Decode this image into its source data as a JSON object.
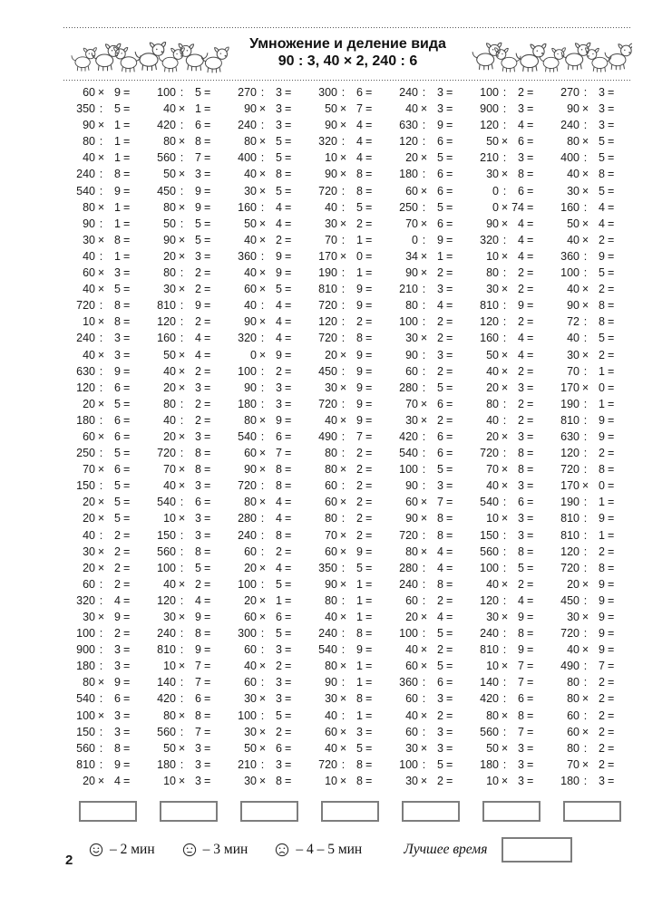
{
  "header": {
    "title_line1": "Умножение и деление вида",
    "title_line2": "90 : 3, 40 × 2, 240 : 6"
  },
  "problems": {
    "equals_sign": "=",
    "columns": [
      [
        "60×9",
        "350:5",
        "90×1",
        "80:1",
        "40×1",
        "240:8",
        "540:9",
        "80×1",
        "90:1",
        "30×8",
        "40:1",
        "60×3",
        "40×5",
        "720:8",
        "10×8",
        "240:3",
        "40×3",
        "630:9",
        "120:6",
        "20×5",
        "180:6",
        "60×6",
        "250:5",
        "70×6",
        "150:5",
        "20×5",
        "20×5",
        "40:2",
        "30×2",
        "20×2",
        "60:2",
        "320:4",
        "30×9",
        "100:2",
        "900:3",
        "180:3",
        "80×9",
        "540:6",
        "100×3",
        "150:3",
        "560:8",
        "810:9",
        "20×4"
      ],
      [
        "100:5",
        "40×1",
        "420:6",
        "80×8",
        "560:7",
        "50×3",
        "450:9",
        "80×9",
        "50:5",
        "90×5",
        "20×3",
        "80:2",
        "30×2",
        "810:9",
        "120:2",
        "160:4",
        "50×4",
        "40×2",
        "20×3",
        "80:2",
        "40:2",
        "20×3",
        "720:8",
        "70×8",
        "40×3",
        "540:6",
        "10×3",
        "150:3",
        "560:8",
        "100:5",
        "40×2",
        "120:4",
        "30×9",
        "240:8",
        "810:9",
        "10×7",
        "140:7",
        "420:6",
        "80×8",
        "560:7",
        "50×3",
        "180:3",
        "10×3"
      ],
      [
        "270:3",
        "90×3",
        "240:3",
        "80×5",
        "400:5",
        "40×8",
        "30×5",
        "160:4",
        "50×4",
        "40×2",
        "360:9",
        "40×9",
        "60×5",
        "40:4",
        "90×4",
        "320:4",
        "0×9",
        "100:2",
        "90:3",
        "180:3",
        "80×9",
        "540:6",
        "60×7",
        "90×8",
        "720:8",
        "80×4",
        "280:4",
        "240:8",
        "60:2",
        "20×4",
        "100:5",
        "20×1",
        "60×6",
        "300:5",
        "60:3",
        "40×2",
        "60:3",
        "30×3",
        "100:5",
        "30×2",
        "50×6",
        "210:3",
        "30×8"
      ],
      [
        "300:6",
        "50×7",
        "90×4",
        "320:4",
        "10×4",
        "90×8",
        "720:8",
        "40:5",
        "30×2",
        "70:1",
        "170×0",
        "190:1",
        "810:9",
        "720:9",
        "120:2",
        "720:8",
        "20×9",
        "450:9",
        "30×9",
        "720:9",
        "40×9",
        "490:7",
        "80:2",
        "80×2",
        "60:2",
        "60×2",
        "80:2",
        "70×2",
        "60×9",
        "350:5",
        "90×1",
        "80:1",
        "40×1",
        "240:8",
        "540:9",
        "80×1",
        "90:1",
        "30×8",
        "40:1",
        "60×3",
        "40×5",
        "720:8",
        "10×8"
      ],
      [
        "240:3",
        "40×3",
        "630:9",
        "120:6",
        "20×5",
        "180:6",
        "60×6",
        "250:5",
        "70×6",
        "0:9",
        "34×1",
        "90×2",
        "210:3",
        "80:4",
        "100:2",
        "30×2",
        "90:3",
        "60:2",
        "280:5",
        "70×6",
        "30×2",
        "420:6",
        "540:6",
        "100:5",
        "90:3",
        "60×7",
        "90×8",
        "720:8",
        "80×4",
        "280:4",
        "240:8",
        "60:2",
        "20×4",
        "100:5",
        "40×2",
        "60×5",
        "360:6",
        "60:3",
        "40×2",
        "60:3",
        "30×3",
        "100:5",
        "30×2"
      ],
      [
        "100:2",
        "900:3",
        "120:4",
        "50×6",
        "210:3",
        "30×8",
        "0:6",
        "0×74",
        "90×4",
        "320:4",
        "10×4",
        "80:2",
        "30×2",
        "810:9",
        "120:2",
        "160:4",
        "50×4",
        "40×2",
        "20×3",
        "80:2",
        "40:2",
        "20×3",
        "720:8",
        "70×8",
        "40×3",
        "540:6",
        "10×3",
        "150:3",
        "560:8",
        "100:5",
        "40×2",
        "120:4",
        "30×9",
        "240:8",
        "810:9",
        "10×7",
        "140:7",
        "420:6",
        "80×8",
        "560:7",
        "50×3",
        "180:3",
        "10×3"
      ],
      [
        "270:3",
        "90×3",
        "240:3",
        "80×5",
        "400:5",
        "40×8",
        "30×5",
        "160:4",
        "50×4",
        "40×2",
        "360:9",
        "100:5",
        "40×2",
        "90×8",
        "72:8",
        "40:5",
        "30×2",
        "70:1",
        "170×0",
        "190:1",
        "810:9",
        "630:9",
        "120:2",
        "720:8",
        "170×0",
        "190:1",
        "810:9",
        "810:1",
        "120:2",
        "720:8",
        "20×9",
        "450:9",
        "30×9",
        "720:9",
        "40×9",
        "490:7",
        "80:2",
        "80×2",
        "60:2",
        "60×2",
        "80:2",
        "70×2",
        "180:3"
      ]
    ]
  },
  "footer": {
    "legend": [
      {
        "face": "happy",
        "label": "– 2 мин"
      },
      {
        "face": "neutral",
        "label": "– 3 мин"
      },
      {
        "face": "sad",
        "label": "– 4 – 5 мин"
      }
    ],
    "best_time_label": "Лучшее время",
    "page_number": "2"
  }
}
